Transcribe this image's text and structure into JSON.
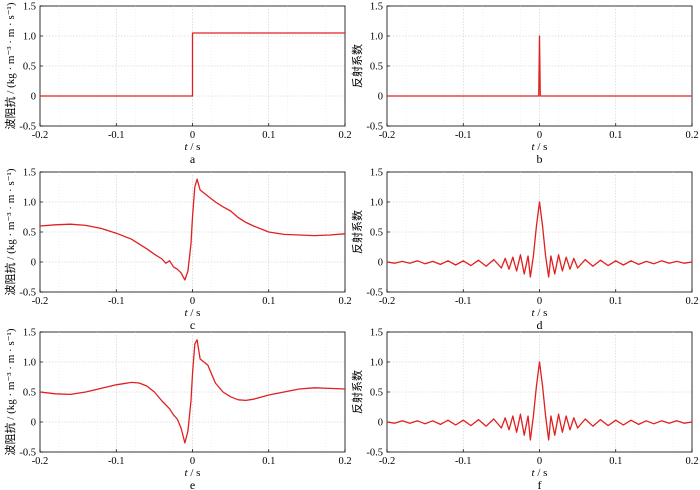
{
  "chart_data": [
    {
      "panel": "a",
      "type": "line",
      "letter": "a",
      "ylabel": "波阻抗 / (kg · m⁻³ · m · s⁻¹)",
      "xlabel": "t / s",
      "xlim": [
        -0.2,
        0.2
      ],
      "ylim": [
        -0.5,
        1.5
      ],
      "xticks": [
        "-0.2",
        "-0.1",
        "0",
        "0.1",
        "0.2"
      ],
      "yticks": [
        "-0.5",
        "0",
        "0.5",
        "1.0",
        "1.5"
      ],
      "grid": true,
      "line_color": "#e02020",
      "series": [
        {
          "x": [
            -0.2,
            0.0,
            0.0,
            0.2
          ],
          "y": [
            0.0,
            0.0,
            1.05,
            1.05
          ]
        }
      ]
    },
    {
      "panel": "b",
      "type": "line",
      "letter": "b",
      "ylabel": "反射系数",
      "xlabel": "t / s",
      "xlim": [
        -0.2,
        0.2
      ],
      "ylim": [
        -0.5,
        1.5
      ],
      "xticks": [
        "-0.2",
        "-0.1",
        "0",
        "0.1",
        "0.2"
      ],
      "yticks": [
        "-0.5",
        "0",
        "0.5",
        "1.0",
        "1.5"
      ],
      "grid": true,
      "line_color": "#e02020",
      "series": [
        {
          "x": [
            -0.2,
            -0.001,
            0.0,
            0.001,
            0.2
          ],
          "y": [
            0.0,
            0.0,
            1.0,
            0.0,
            0.0
          ]
        }
      ]
    },
    {
      "panel": "c",
      "type": "line",
      "letter": "c",
      "ylabel": "波阻抗 / (kg · m⁻³ · m · s⁻¹)",
      "xlabel": "t / s",
      "xlim": [
        -0.2,
        0.2
      ],
      "ylim": [
        -0.5,
        1.5
      ],
      "xticks": [
        "-0.2",
        "-0.1",
        "0",
        "0.1",
        "0.2"
      ],
      "yticks": [
        "-0.5",
        "0",
        "0.5",
        "1.0",
        "1.5"
      ],
      "grid": true,
      "line_color": "#e02020",
      "series": [
        {
          "x": [
            -0.2,
            -0.18,
            -0.16,
            -0.14,
            -0.12,
            -0.1,
            -0.08,
            -0.06,
            -0.05,
            -0.04,
            -0.035,
            -0.03,
            -0.025,
            -0.02,
            -0.015,
            -0.01,
            -0.006,
            -0.002,
            0.0,
            0.003,
            0.006,
            0.01,
            0.015,
            0.02,
            0.025,
            0.03,
            0.04,
            0.05,
            0.06,
            0.07,
            0.08,
            0.1,
            0.12,
            0.14,
            0.16,
            0.18,
            0.2
          ],
          "y": [
            0.6,
            0.62,
            0.63,
            0.61,
            0.56,
            0.48,
            0.38,
            0.22,
            0.13,
            0.05,
            -0.02,
            0.02,
            -0.08,
            -0.12,
            -0.18,
            -0.3,
            -0.15,
            0.3,
            0.75,
            1.25,
            1.38,
            1.2,
            1.15,
            1.1,
            1.05,
            1.0,
            0.92,
            0.85,
            0.74,
            0.66,
            0.6,
            0.5,
            0.46,
            0.45,
            0.44,
            0.45,
            0.47
          ]
        }
      ]
    },
    {
      "panel": "d",
      "type": "line",
      "letter": "d",
      "ylabel": "反射系数",
      "xlabel": "t / s",
      "xlim": [
        -0.2,
        0.2
      ],
      "ylim": [
        -0.5,
        1.5
      ],
      "xticks": [
        "-0.2",
        "-0.1",
        "0",
        "0.1",
        "0.2"
      ],
      "yticks": [
        "-0.5",
        "0",
        "0.5",
        "1.0",
        "1.5"
      ],
      "grid": true,
      "line_color": "#e02020",
      "series": [
        {
          "x": [
            -0.2,
            -0.19,
            -0.18,
            -0.17,
            -0.16,
            -0.15,
            -0.14,
            -0.13,
            -0.12,
            -0.11,
            -0.1,
            -0.09,
            -0.08,
            -0.07,
            -0.06,
            -0.05,
            -0.045,
            -0.04,
            -0.035,
            -0.03,
            -0.025,
            -0.02,
            -0.015,
            -0.012,
            -0.008,
            -0.004,
            0.0,
            0.004,
            0.008,
            0.012,
            0.015,
            0.02,
            0.025,
            0.03,
            0.035,
            0.04,
            0.045,
            0.05,
            0.06,
            0.07,
            0.08,
            0.09,
            0.1,
            0.11,
            0.12,
            0.13,
            0.14,
            0.15,
            0.16,
            0.17,
            0.18,
            0.19,
            0.2
          ],
          "y": [
            0.0,
            -0.02,
            0.01,
            -0.02,
            0.02,
            -0.03,
            0.01,
            -0.04,
            0.02,
            -0.05,
            0.02,
            -0.06,
            0.03,
            -0.07,
            0.04,
            -0.1,
            0.06,
            -0.12,
            0.08,
            -0.15,
            0.12,
            -0.2,
            0.1,
            -0.25,
            0.1,
            0.6,
            1.0,
            0.6,
            0.1,
            -0.25,
            0.1,
            -0.2,
            0.12,
            -0.15,
            0.08,
            -0.12,
            0.06,
            -0.1,
            0.04,
            -0.07,
            0.03,
            -0.06,
            0.02,
            -0.05,
            0.02,
            -0.04,
            0.01,
            -0.03,
            0.02,
            -0.02,
            0.01,
            -0.02,
            0.0
          ]
        }
      ]
    },
    {
      "panel": "e",
      "type": "line",
      "letter": "e",
      "ylabel": "波阻抗 / (kg · m⁻³ · m · s⁻¹)",
      "xlabel": "t / s",
      "xlim": [
        -0.2,
        0.2
      ],
      "ylim": [
        -0.5,
        1.5
      ],
      "xticks": [
        "-0.2",
        "-0.1",
        "0",
        "0.1",
        "0.2"
      ],
      "yticks": [
        "-0.5",
        "0",
        "0.5",
        "1.0",
        "1.5"
      ],
      "grid": true,
      "line_color": "#e02020",
      "series": [
        {
          "x": [
            -0.2,
            -0.18,
            -0.16,
            -0.14,
            -0.12,
            -0.1,
            -0.08,
            -0.07,
            -0.06,
            -0.05,
            -0.04,
            -0.03,
            -0.025,
            -0.02,
            -0.015,
            -0.01,
            -0.006,
            -0.002,
            0.0,
            0.003,
            0.006,
            0.01,
            0.015,
            0.02,
            0.025,
            0.03,
            0.04,
            0.05,
            0.06,
            0.07,
            0.08,
            0.1,
            0.12,
            0.14,
            0.16,
            0.18,
            0.2
          ],
          "y": [
            0.5,
            0.47,
            0.46,
            0.5,
            0.56,
            0.62,
            0.66,
            0.65,
            0.6,
            0.5,
            0.35,
            0.22,
            0.12,
            0.05,
            -0.1,
            -0.35,
            -0.15,
            0.35,
            0.8,
            1.3,
            1.37,
            1.05,
            1.0,
            0.95,
            0.8,
            0.65,
            0.5,
            0.42,
            0.37,
            0.36,
            0.38,
            0.45,
            0.5,
            0.55,
            0.57,
            0.56,
            0.55
          ]
        }
      ]
    },
    {
      "panel": "f",
      "type": "line",
      "letter": "f",
      "ylabel": "反射系数",
      "xlabel": "t / s",
      "xlim": [
        -0.2,
        0.2
      ],
      "ylim": [
        -0.5,
        1.5
      ],
      "xticks": [
        "-0.2",
        "-0.1",
        "0",
        "0.1",
        "0.2"
      ],
      "yticks": [
        "-0.5",
        "0",
        "0.5",
        "1.0",
        "1.5"
      ],
      "grid": true,
      "line_color": "#e02020",
      "series": [
        {
          "x": [
            -0.2,
            -0.19,
            -0.18,
            -0.17,
            -0.16,
            -0.15,
            -0.14,
            -0.13,
            -0.12,
            -0.11,
            -0.1,
            -0.09,
            -0.08,
            -0.07,
            -0.06,
            -0.05,
            -0.045,
            -0.04,
            -0.035,
            -0.03,
            -0.025,
            -0.02,
            -0.015,
            -0.012,
            -0.008,
            -0.004,
            0.0,
            0.004,
            0.008,
            0.012,
            0.015,
            0.02,
            0.025,
            0.03,
            0.035,
            0.04,
            0.045,
            0.05,
            0.06,
            0.07,
            0.08,
            0.09,
            0.1,
            0.11,
            0.12,
            0.13,
            0.14,
            0.15,
            0.16,
            0.17,
            0.18,
            0.19,
            0.2
          ],
          "y": [
            0.0,
            -0.02,
            0.02,
            -0.02,
            0.02,
            -0.03,
            0.02,
            -0.04,
            0.03,
            -0.05,
            0.03,
            -0.06,
            0.04,
            -0.07,
            0.05,
            -0.1,
            0.07,
            -0.13,
            0.1,
            -0.17,
            0.13,
            -0.22,
            0.1,
            -0.3,
            0.1,
            0.6,
            1.0,
            0.6,
            0.1,
            -0.3,
            0.1,
            -0.22,
            0.13,
            -0.17,
            0.1,
            -0.13,
            0.07,
            -0.1,
            0.05,
            -0.07,
            0.04,
            -0.06,
            0.03,
            -0.05,
            0.03,
            -0.04,
            0.02,
            -0.03,
            0.02,
            -0.02,
            0.02,
            -0.02,
            0.0
          ]
        }
      ]
    }
  ]
}
